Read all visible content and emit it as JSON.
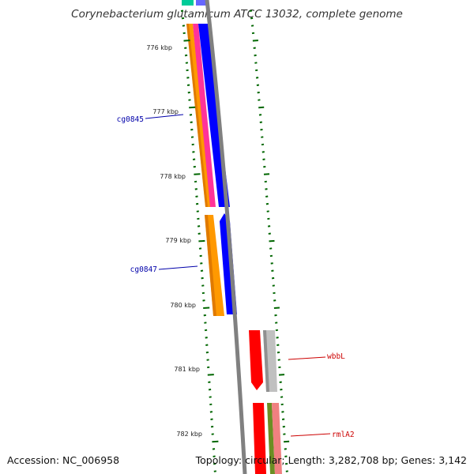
{
  "map": {
    "title": "Corynebacterium glutamicum ATCC 13032, complete genome",
    "accession_label": "Accession: NC_006958",
    "summary_label": "Topology: circular; Length: 3,282,708 bp; Genes: 3,142",
    "kbp_labels": [
      "776 kbp",
      "777 kbp",
      "778 kbp",
      "779 kbp",
      "780 kbp",
      "781 kbp",
      "782 kbp"
    ],
    "gene_labels": [
      {
        "name": "cg0845",
        "color": "#0000aa"
      },
      {
        "name": "cg0847",
        "color": "#0000aa"
      },
      {
        "name": "wbbL",
        "color": "#cc0000"
      },
      {
        "name": "rmlA2",
        "color": "#cc0000"
      }
    ],
    "colors": {
      "orange": "#ff9900",
      "pink": "#ff3399",
      "blue": "#0000ff",
      "red": "#ff0000",
      "gray_gene": "#c0c0c0",
      "olive": "#6b8e23",
      "light_red": "#f08080",
      "teal": "#00cc99",
      "backbone": "#808080",
      "ticks": "#006600"
    }
  }
}
